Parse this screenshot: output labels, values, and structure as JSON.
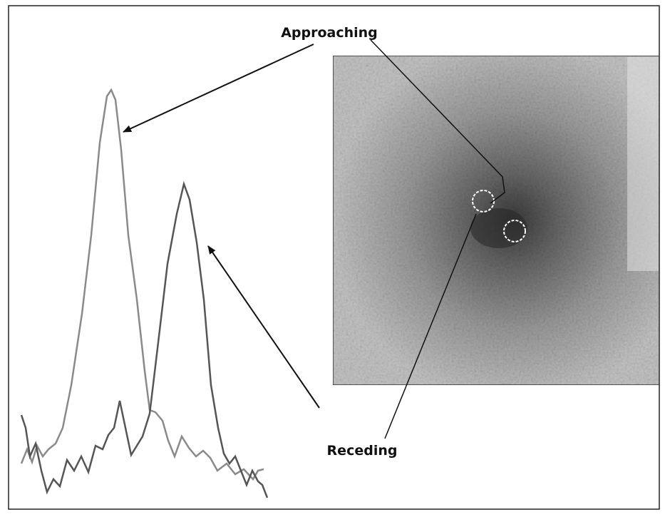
{
  "labels": {
    "approaching": "Approaching",
    "receding": "Receding"
  }
}
